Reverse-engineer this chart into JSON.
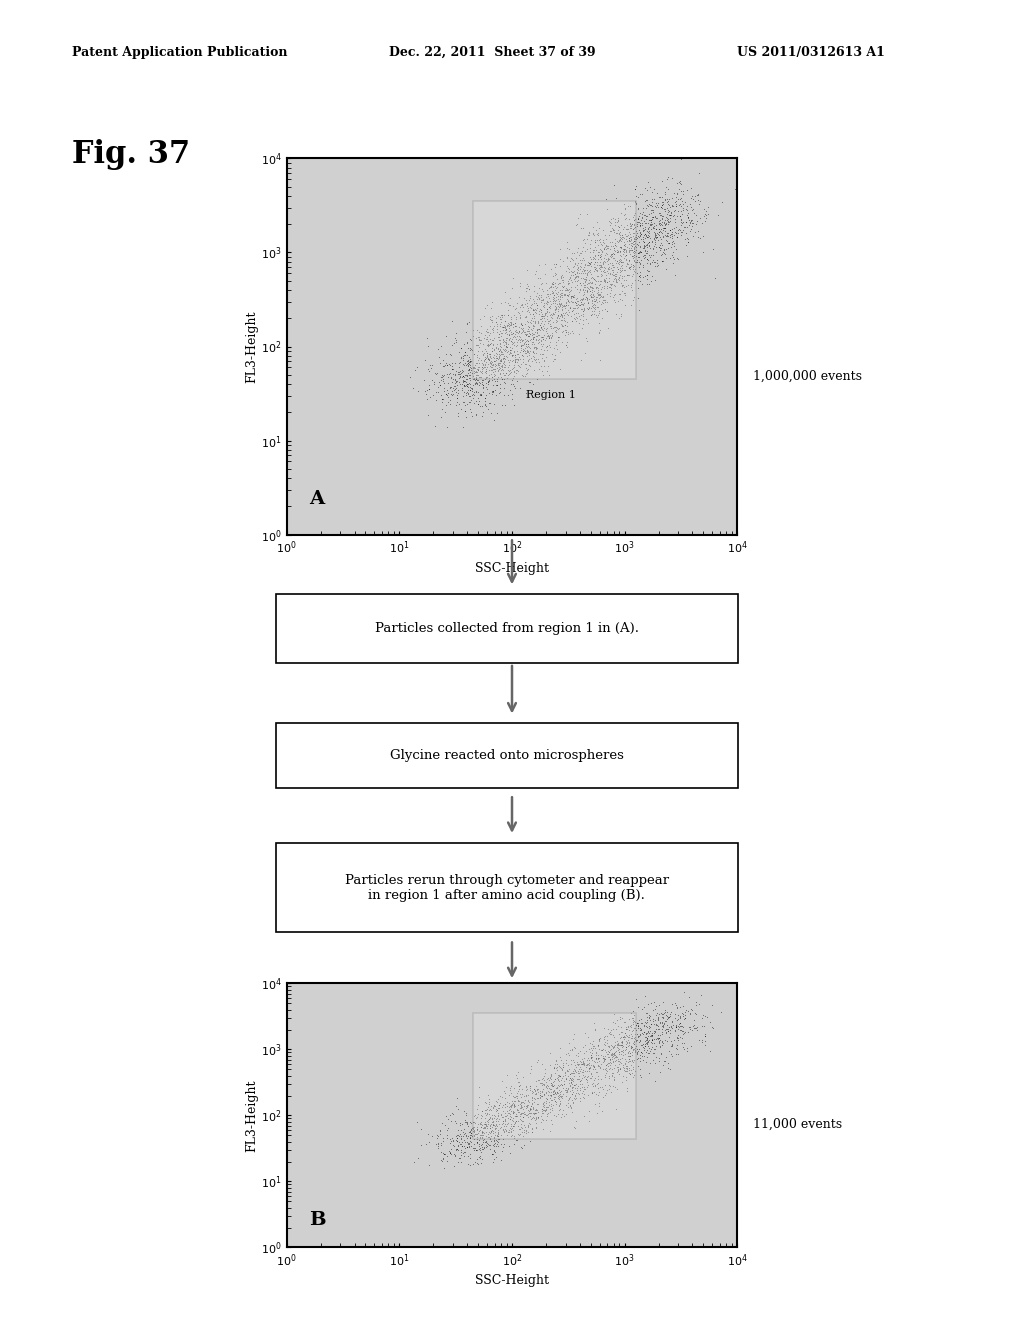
{
  "fig_label": "Fig. 37",
  "header_left": "Patent Application Publication",
  "header_mid": "Dec. 22, 2011  Sheet 37 of 39",
  "header_right": "US 2011/0312613 A1",
  "plot_A_label": "A",
  "plot_B_label": "B",
  "xlabel": "SSC-Height",
  "ylabel": "FL3-Height",
  "x_ticks": [
    "10⁰",
    "10¹",
    "10²",
    "10³",
    "10⁴"
  ],
  "y_ticks": [
    "10⁰",
    "10¹",
    "10²",
    "10³",
    "10⁴"
  ],
  "region1_label": "Region 1",
  "events_A": "1,000,000 events",
  "events_B": "11,000 events",
  "box1_text": "Particles collected from region 1 in (A).",
  "box2_text": "Glycine reacted onto microspheres",
  "box3_text": "Particles rerun through cytometer and reappear\nin region 1 after amino acid coupling (B).",
  "bg_color": "#ffffff",
  "plot_bg": "#d8d8d8",
  "scatter_color": "#000000",
  "region_box_color": "#c8c8c8",
  "box_border": "#555555"
}
